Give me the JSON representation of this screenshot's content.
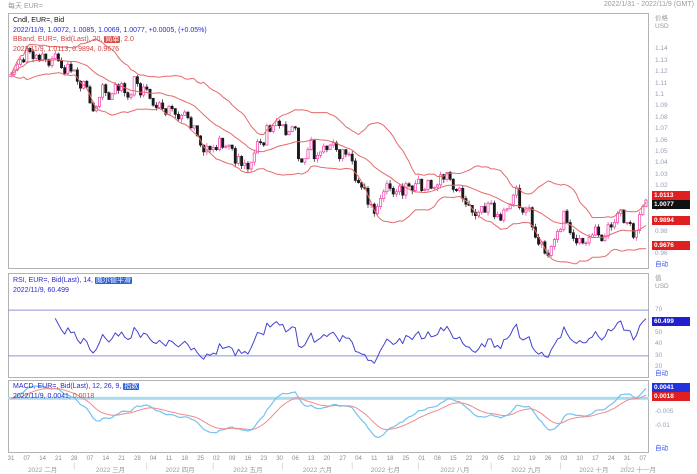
{
  "header": {
    "left": "每天 EUR=",
    "right": "2022/1/31 - 2022/11/9 (GMT)"
  },
  "main_panel": {
    "legend1": "Cndl, EUR=, Bid",
    "legend2": "2022/11/9, 1.0072, 1.0085, 1.0069, 1.0077, +0.0005, (+0.05%)",
    "legend3a": "BBand, EUR=, Bid(Last), 20, ",
    "legend3badge": "简单",
    "legend3b": ", 2.0",
    "legend4": "2022/11/9, 1.0113, 0.9894, 0.9676",
    "axis": {
      "title1": "价格",
      "title2": "USD",
      "auto": "自动",
      "ticks": [
        {
          "v": 1.14,
          "l": "1.14"
        },
        {
          "v": 1.13,
          "l": "1.13"
        },
        {
          "v": 1.12,
          "l": "1.12"
        },
        {
          "v": 1.11,
          "l": "1.11"
        },
        {
          "v": 1.1,
          "l": "1.1"
        },
        {
          "v": 1.09,
          "l": "1.09"
        },
        {
          "v": 1.08,
          "l": "1.08"
        },
        {
          "v": 1.07,
          "l": "1.07"
        },
        {
          "v": 1.06,
          "l": "1.06"
        },
        {
          "v": 1.05,
          "l": "1.05"
        },
        {
          "v": 1.04,
          "l": "1.04"
        },
        {
          "v": 1.03,
          "l": "1.03"
        },
        {
          "v": 1.02,
          "l": "1.02"
        },
        {
          "v": 1.0,
          "l": "1"
        },
        {
          "v": 0.98,
          "l": "0.98"
        },
        {
          "v": 0.96,
          "l": "0.96"
        }
      ],
      "boxes": [
        {
          "v": 1.0113,
          "l": "1.0113",
          "bg": "#e02020"
        },
        {
          "v": 1.0077,
          "l": "1.0077",
          "bg": "#111111"
        },
        {
          "v": 0.9894,
          "l": "0.9894",
          "bg": "#e02020"
        },
        {
          "v": 0.9676,
          "l": "0.9676",
          "bg": "#e02020"
        }
      ]
    }
  },
  "rsi_panel": {
    "legend1a": "RSI, EUR=, Bid(Last), 14, ",
    "legend1badge": "威尔德平滑",
    "legend2": "2022/11/9, 60.499",
    "axis": {
      "title1": "值",
      "title2": "USD",
      "auto": "自动",
      "ticks": [
        {
          "v": 70,
          "l": "70"
        },
        {
          "v": 50,
          "l": "50"
        },
        {
          "v": 40,
          "l": "40"
        },
        {
          "v": 30,
          "l": "30"
        },
        {
          "v": 20,
          "l": "20"
        }
      ],
      "boxes": [
        {
          "v": 60.499,
          "l": "60.499",
          "bg": "#1f1fd0"
        }
      ]
    }
  },
  "macd_panel": {
    "legend1a": "MACD, EUR=, Bid(Last), 12, 26, 9, ",
    "legend1badge": "指数",
    "legend2a": "2022/11/9, 0.0041,",
    "legend2b": " 0.0018",
    "axis": {
      "auto": "自动",
      "ticks": [
        {
          "v": 0,
          "l": "0.00"
        },
        {
          "v": -0.005,
          "l": "-0.005"
        },
        {
          "v": -0.01,
          "l": "-0.01"
        }
      ],
      "boxes": [
        {
          "v": 0.0041,
          "l": "0.0041",
          "bg": "#2233dd"
        },
        {
          "v": 0.0018,
          "l": "0.0018",
          "bg": "#e02020"
        }
      ]
    }
  },
  "x_axis": {
    "day_ticks": [
      "31",
      "07",
      "14",
      "21",
      "28",
      "07",
      "14",
      "21",
      "28",
      "04",
      "11",
      "18",
      "25",
      "02",
      "09",
      "16",
      "23",
      "30",
      "06",
      "13",
      "20",
      "27",
      "04",
      "11",
      "18",
      "25",
      "01",
      "08",
      "15",
      "22",
      "29",
      "05",
      "12",
      "19",
      "26",
      "03",
      "10",
      "17",
      "24",
      "31",
      "07"
    ],
    "months": [
      {
        "label": "2022 二月",
        "start": 0,
        "end": 20
      },
      {
        "label": "2022 三月",
        "start": 20,
        "end": 43
      },
      {
        "label": "2022 四月",
        "start": 43,
        "end": 64
      },
      {
        "label": "2022 五月",
        "start": 64,
        "end": 86
      },
      {
        "label": "2022 六月",
        "start": 86,
        "end": 108
      },
      {
        "label": "2022 七月",
        "start": 108,
        "end": 129
      },
      {
        "label": "2022 八月",
        "start": 129,
        "end": 152
      },
      {
        "label": "2022 九月",
        "start": 152,
        "end": 174
      },
      {
        "label": "2022 十月",
        "start": 174,
        "end": 195
      },
      {
        "label": "2022 十一月",
        "start": 195,
        "end": 202
      }
    ]
  },
  "chart_data": {
    "type": "candlestick",
    "instrument": "EUR=",
    "interval": "每天",
    "date_range": "2022/1/31 - 2022/11/9 (GMT)",
    "last_bar": {
      "date": "2022/11/9",
      "open": 1.0072,
      "high": 1.0085,
      "low": 1.0069,
      "close": 1.0077,
      "change": "+0.0005",
      "change_pct": "+0.05%"
    },
    "bollinger": {
      "period": 20,
      "method": "简单",
      "mult": 2.0,
      "upper": 1.0113,
      "middle": 0.9894,
      "lower": 0.9676
    },
    "rsi": {
      "period": 14,
      "method": "威尔德平滑",
      "value": 60.499,
      "lines": [
        70,
        30
      ],
      "ylim": [
        15,
        85
      ]
    },
    "macd": {
      "fast": 12,
      "slow": 26,
      "signal_period": 9,
      "method": "指数",
      "macd": 0.0041,
      "signal": 0.0018,
      "ylim": [
        -0.019,
        0.006
      ]
    },
    "ylim": [
      0.948,
      1.172
    ],
    "colors": {
      "up": "#ef38a8",
      "down": "#1a1a1a",
      "band": "#e66a6a",
      "rsi_line": "#4343cf",
      "rsi_hline": "#9090dc",
      "macd_line": "#74c3ef",
      "signal_line": "#ef8c8c",
      "zero_line": "#aadcf0"
    },
    "closes": [
      1.118,
      1.122,
      1.127,
      1.131,
      1.129,
      1.141,
      1.138,
      1.132,
      1.135,
      1.13,
      1.136,
      1.131,
      1.126,
      1.132,
      1.136,
      1.13,
      1.124,
      1.119,
      1.127,
      1.121,
      1.122,
      1.112,
      1.106,
      1.112,
      1.107,
      1.093,
      1.086,
      1.09,
      1.098,
      1.109,
      1.102,
      1.096,
      1.101,
      1.109,
      1.104,
      1.11,
      1.102,
      1.098,
      1.1,
      1.116,
      1.11,
      1.1,
      1.107,
      1.105,
      1.097,
      1.091,
      1.089,
      1.093,
      1.088,
      1.083,
      1.09,
      1.088,
      1.083,
      1.079,
      1.082,
      1.085,
      1.08,
      1.071,
      1.073,
      1.064,
      1.056,
      1.05,
      1.055,
      1.052,
      1.054,
      1.052,
      1.062,
      1.054,
      1.055,
      1.056,
      1.053,
      1.04,
      1.046,
      1.038,
      1.04,
      1.035,
      1.041,
      1.049,
      1.059,
      1.058,
      1.056,
      1.073,
      1.068,
      1.073,
      1.077,
      1.073,
      1.074,
      1.065,
      1.068,
      1.072,
      1.071,
      1.044,
      1.041,
      1.044,
      1.052,
      1.06,
      1.044,
      1.047,
      1.05,
      1.055,
      1.052,
      1.056,
      1.058,
      1.052,
      1.044,
      1.052,
      1.048,
      1.048,
      1.042,
      1.025,
      1.023,
      1.019,
      1.018,
      1.004,
      1.004,
      0.996,
      1.002,
      1.009,
      1.015,
      1.022,
      1.018,
      1.013,
      1.015,
      1.02,
      1.012,
      1.022,
      1.02,
      1.016,
      1.022,
      1.026,
      1.016,
      1.017,
      1.025,
      1.018,
      1.019,
      1.021,
      1.03,
      1.026,
      1.032,
      1.026,
      1.017,
      1.016,
      1.018,
      1.009,
      1.004,
      1.003,
      0.997,
      0.994,
      0.997,
      1.002,
      0.997,
      1.005,
      1.005,
      0.993,
      0.995,
      0.99,
      0.999,
      1.0,
      1.004,
      1.012,
      1.018,
      1.001,
      0.997,
      0.999,
      1.001,
      0.984,
      0.975,
      0.969,
      0.971,
      0.961,
      0.959,
      0.967,
      0.973,
      0.98,
      0.982,
      0.998,
      0.988,
      0.979,
      0.974,
      0.97,
      0.974,
      0.97,
      0.97,
      0.975,
      0.977,
      0.984,
      0.977,
      0.972,
      0.976,
      0.986,
      0.984,
      0.988,
      0.996,
      0.999,
      0.988,
      0.988,
      0.987,
      0.975,
      0.981,
      0.995,
      1.002,
      1.0077
    ]
  }
}
